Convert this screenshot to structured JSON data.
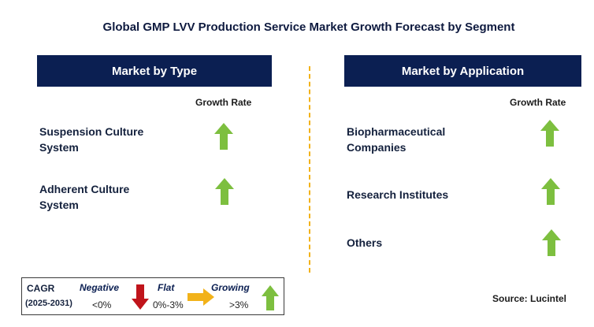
{
  "title": "Global GMP LVV Production Service Market Growth Forecast by Segment",
  "left_panel": {
    "header": "Market by Type",
    "growth_rate_label": "Growth Rate",
    "rows": [
      {
        "label_line1": "Suspension Culture",
        "label_line2": "System",
        "trend": "growing"
      },
      {
        "label_line1": "Adherent Culture",
        "label_line2": "System",
        "trend": "growing"
      }
    ]
  },
  "right_panel": {
    "header": "Market by Application",
    "growth_rate_label": "Growth Rate",
    "rows": [
      {
        "label_line1": "Biopharmaceutical",
        "label_line2": "Companies",
        "trend": "growing"
      },
      {
        "label_line1": "Research Institutes",
        "label_line2": "",
        "trend": "growing"
      },
      {
        "label_line1": "Others",
        "label_line2": "",
        "trend": "growing"
      }
    ]
  },
  "legend": {
    "cagr_label": "CAGR",
    "period_label": "(2025-2031)",
    "negative_label": "Negative",
    "negative_value": "<0%",
    "flat_label": "Flat",
    "flat_value": "0%-3%",
    "growing_label": "Growing",
    "growing_value": ">3%"
  },
  "source": "Source: Lucintel",
  "colors": {
    "header_bg": "#0b1f52",
    "growing": "#7dbf3f",
    "negative": "#c0141b",
    "flat": "#f2b21a",
    "divider": "#f2b21a"
  },
  "icons": {
    "growing": "arrow-up-icon",
    "negative": "arrow-down-icon",
    "flat": "arrow-right-icon"
  }
}
